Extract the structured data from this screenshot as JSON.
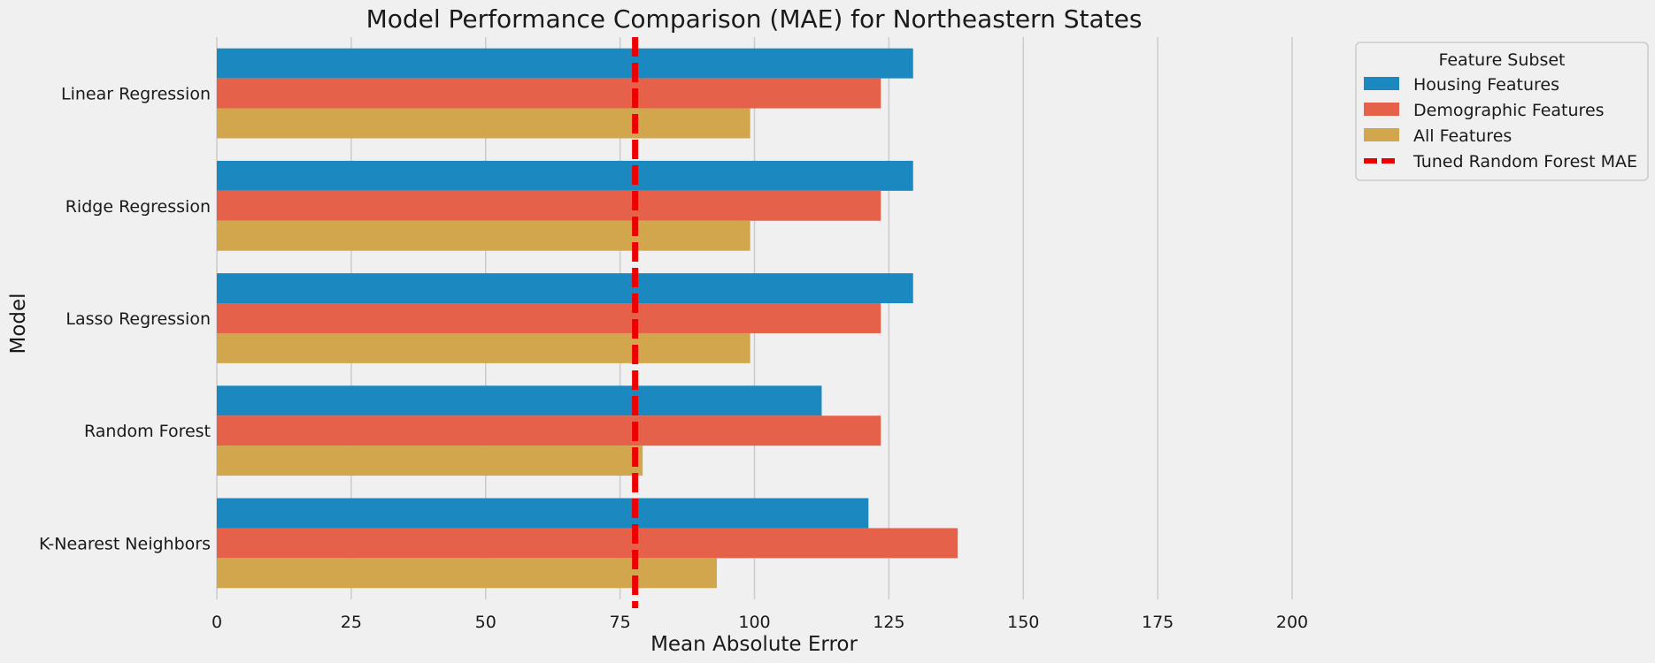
{
  "chart_data": {
    "type": "bar",
    "orientation": "horizontal",
    "title": "Model Performance Comparison (MAE) for Northeastern States",
    "xlabel": "Mean Absolute Error",
    "ylabel": "Model",
    "xlim": [
      0,
      200
    ],
    "xticks": [
      "0",
      "25",
      "50",
      "75",
      "100",
      "125",
      "150",
      "175",
      "200"
    ],
    "grid": "vertical",
    "categories": [
      "Linear Regression",
      "Ridge Regression",
      "Lasso Regression",
      "Random Forest",
      "K-Nearest Neighbors"
    ],
    "series": [
      {
        "name": "Housing Features",
        "color": "#1b88bf",
        "values": [
          129.5,
          129.5,
          129.5,
          112.5,
          121.2
        ]
      },
      {
        "name": "Demographic Features",
        "color": "#e5614a",
        "values": [
          123.5,
          123.5,
          123.5,
          123.5,
          137.8
        ]
      },
      {
        "name": "All Features",
        "color": "#d2a64d",
        "values": [
          99.2,
          99.2,
          99.2,
          79.2,
          93.0
        ]
      }
    ],
    "reference_line": {
      "name": "Tuned Random Forest MAE",
      "value": 77.8,
      "color": "#ee0000",
      "style": "dashed"
    },
    "legend": {
      "title": "Feature Subset",
      "placement": "upper-right-outside"
    }
  }
}
